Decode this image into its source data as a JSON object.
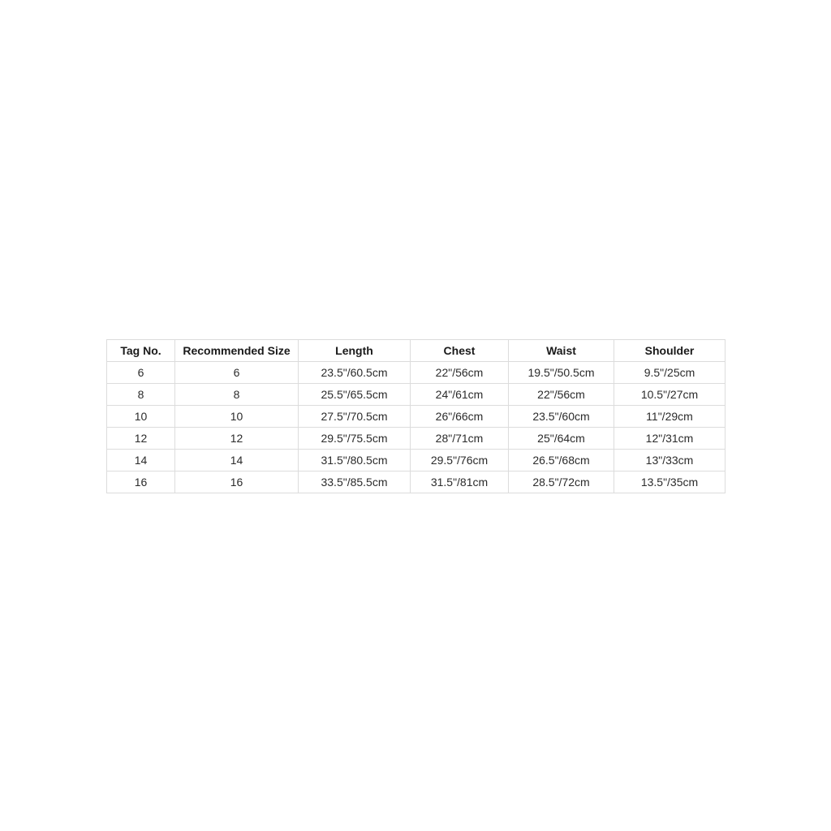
{
  "colors": {
    "background": "#ffffff",
    "border": "#dcdcdc",
    "header_text": "#1a1a1a",
    "cell_text": "#2b2b2b"
  },
  "chart_data": {
    "type": "table",
    "title": "",
    "columns": [
      "Tag No.",
      "Recommended Size",
      "Length",
      "Chest",
      "Waist",
      "Shoulder"
    ],
    "rows": [
      [
        "6",
        "6",
        "23.5\"/60.5cm",
        "22\"/56cm",
        "19.5\"/50.5cm",
        "9.5\"/25cm"
      ],
      [
        "8",
        "8",
        "25.5\"/65.5cm",
        "24\"/61cm",
        "22\"/56cm",
        "10.5\"/27cm"
      ],
      [
        "10",
        "10",
        "27.5\"/70.5cm",
        "26\"/66cm",
        "23.5\"/60cm",
        "11\"/29cm"
      ],
      [
        "12",
        "12",
        "29.5\"/75.5cm",
        "28\"/71cm",
        "25\"/64cm",
        "12\"/31cm"
      ],
      [
        "14",
        "14",
        "31.5\"/80.5cm",
        "29.5\"/76cm",
        "26.5\"/68cm",
        "13\"/33cm"
      ],
      [
        "16",
        "16",
        "33.5\"/85.5cm",
        "31.5\"/81cm",
        "28.5\"/72cm",
        "13.5\"/35cm"
      ]
    ]
  }
}
